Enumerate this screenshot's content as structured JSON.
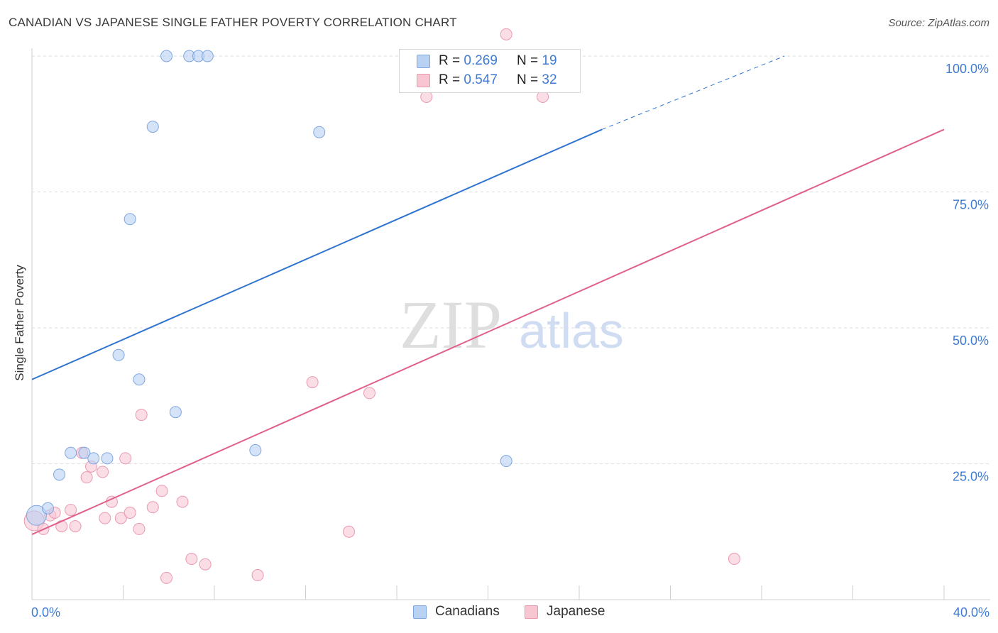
{
  "title": "CANADIAN VS JAPANESE SINGLE FATHER POVERTY CORRELATION CHART",
  "source": "Source: ZipAtlas.com",
  "watermark": {
    "zip": "ZIP",
    "atlas": "atlas"
  },
  "legend": {
    "rows": [
      {
        "r_label": "R =",
        "r_value": "0.269",
        "n_label": "N =",
        "n_value": "19"
      },
      {
        "r_label": "R =",
        "r_value": "0.547",
        "n_label": "N =",
        "n_value": "32"
      }
    ]
  },
  "bottom_legend": {
    "canadians": "Canadians",
    "japanese": "Japanese"
  },
  "colors": {
    "canadians_fill": "#b9d1f3",
    "canadians_stroke": "#7ea7e0",
    "canadians_line": "#2f74d0",
    "japanese_fill": "#f8c6d3",
    "japanese_stroke": "#e99ab1",
    "japanese_line": "#e0608b",
    "axis_text": "#3f7bd4"
  },
  "chart_data": {
    "type": "scatter",
    "title": "CANADIAN VS JAPANESE SINGLE FATHER POVERTY CORRELATION CHART",
    "xlabel": "",
    "ylabel": "Single Father Poverty",
    "xlim": [
      0,
      40
    ],
    "ylim": [
      0,
      102
    ],
    "x_tick_labels": [
      "0.0%",
      "40.0%"
    ],
    "y_ticks": [
      25,
      50,
      75,
      100
    ],
    "y_tick_labels": [
      "25.0%",
      "50.0%",
      "75.0%",
      "100.0%"
    ],
    "grid": true,
    "legend_position": "top-center",
    "series": [
      {
        "name": "Canadians",
        "r": 0.269,
        "n": 19,
        "points": [
          [
            0.2,
            15.5
          ],
          [
            0.7,
            16.8
          ],
          [
            1.2,
            23.0
          ],
          [
            1.7,
            27.0
          ],
          [
            2.3,
            27.0
          ],
          [
            2.7,
            26.0
          ],
          [
            3.3,
            26.0
          ],
          [
            3.8,
            45.0
          ],
          [
            4.3,
            70.0
          ],
          [
            4.7,
            40.5
          ],
          [
            5.3,
            87.0
          ],
          [
            5.9,
            100.0
          ],
          [
            6.3,
            34.5
          ],
          [
            6.9,
            100.0
          ],
          [
            7.3,
            100.0
          ],
          [
            7.7,
            100.0
          ],
          [
            9.8,
            27.5
          ],
          [
            12.6,
            86.0
          ],
          [
            20.8,
            25.5
          ]
        ],
        "trend": {
          "x0": 0,
          "y0": 40.5,
          "x1": 25,
          "y1": 86.5,
          "dash_to_x": 33,
          "dash_to_y": 100
        }
      },
      {
        "name": "Japanese",
        "r": 0.547,
        "n": 32,
        "points": [
          [
            0.1,
            14.5
          ],
          [
            0.5,
            13.0
          ],
          [
            0.8,
            15.5
          ],
          [
            1.0,
            16.0
          ],
          [
            1.3,
            13.5
          ],
          [
            1.7,
            16.5
          ],
          [
            1.9,
            13.5
          ],
          [
            2.2,
            27.0
          ],
          [
            2.4,
            22.5
          ],
          [
            2.6,
            24.5
          ],
          [
            3.1,
            23.5
          ],
          [
            3.2,
            15.0
          ],
          [
            3.5,
            18.0
          ],
          [
            3.9,
            15.0
          ],
          [
            4.1,
            26.0
          ],
          [
            4.3,
            16.0
          ],
          [
            4.7,
            13.0
          ],
          [
            4.8,
            34.0
          ],
          [
            5.3,
            17.0
          ],
          [
            5.7,
            20.0
          ],
          [
            5.9,
            4.0
          ],
          [
            6.6,
            18.0
          ],
          [
            7.0,
            7.5
          ],
          [
            7.6,
            6.5
          ],
          [
            9.9,
            4.5
          ],
          [
            12.3,
            40.0
          ],
          [
            13.9,
            12.5
          ],
          [
            14.8,
            38.0
          ],
          [
            17.3,
            92.5
          ],
          [
            20.8,
            104.0
          ],
          [
            22.4,
            92.5
          ],
          [
            30.8,
            7.5
          ]
        ],
        "trend": {
          "x0": 0,
          "y0": 12.0,
          "x1": 40,
          "y1": 86.5
        }
      }
    ]
  }
}
